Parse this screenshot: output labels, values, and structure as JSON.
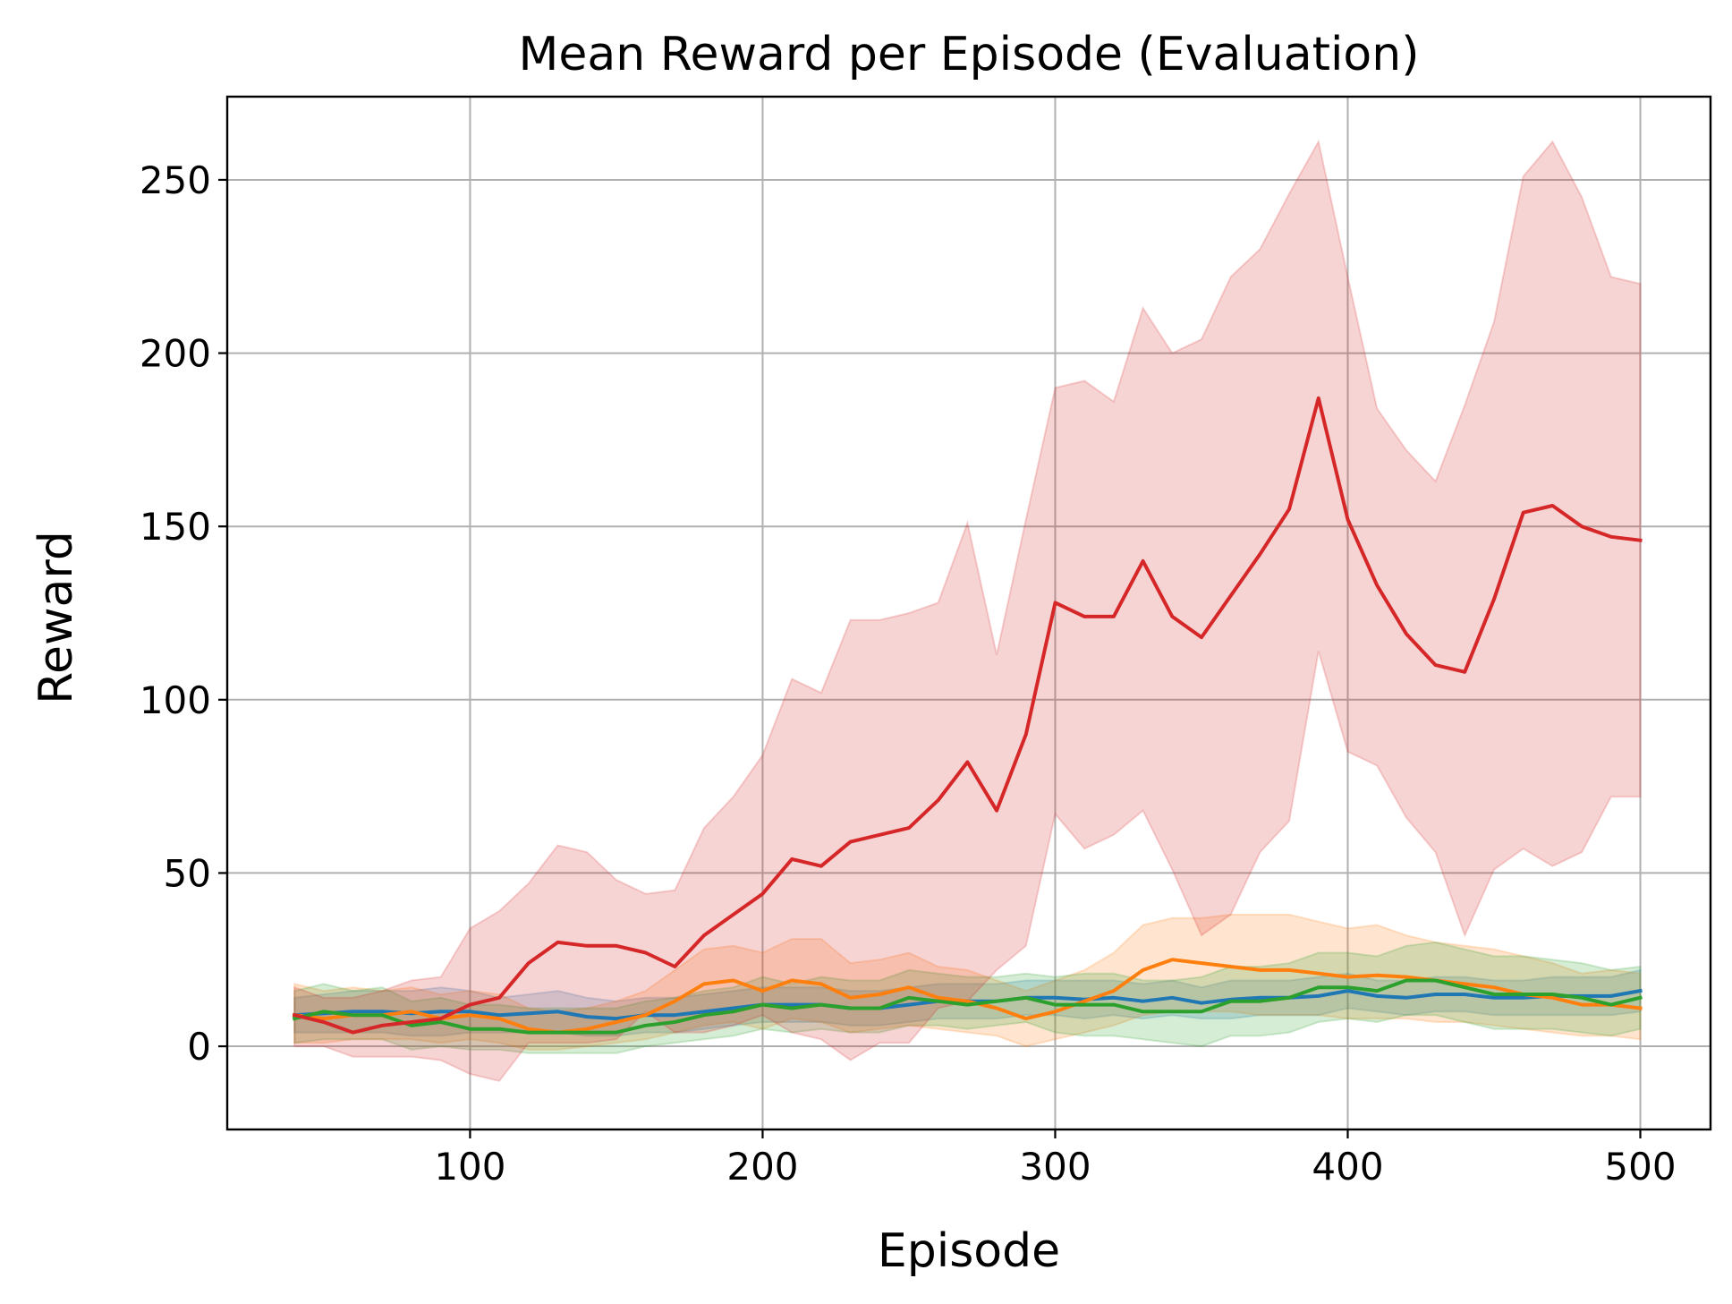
{
  "chart_data": {
    "type": "line",
    "title": "Mean Reward per Episode (Evaluation)",
    "xlabel": "Episode",
    "ylabel": "Reward",
    "xlim": [
      17,
      524
    ],
    "ylim": [
      -24,
      274
    ],
    "xticks": [
      100,
      200,
      300,
      400,
      500
    ],
    "yticks": [
      0,
      50,
      100,
      150,
      200,
      250
    ],
    "grid": true,
    "x": [
      40,
      50,
      60,
      70,
      80,
      90,
      100,
      110,
      120,
      130,
      140,
      150,
      160,
      170,
      180,
      190,
      200,
      210,
      220,
      230,
      240,
      250,
      260,
      270,
      280,
      290,
      300,
      310,
      320,
      330,
      340,
      350,
      360,
      370,
      380,
      390,
      400,
      410,
      420,
      430,
      440,
      450,
      460,
      470,
      480,
      490,
      500
    ],
    "series": [
      {
        "color": "#1f77b4",
        "values": [
          9,
          9.5,
          10,
          10,
          9.5,
          10,
          10,
          9,
          9.5,
          10,
          8.5,
          8,
          9,
          9,
          10,
          11,
          12,
          12,
          12,
          11,
          11,
          12,
          13,
          13,
          13,
          14,
          14,
          13.5,
          14,
          13,
          14,
          12.5,
          13.5,
          14,
          14,
          14.5,
          16,
          14.5,
          14,
          15,
          15,
          14,
          14,
          14.5,
          14.5,
          14.5,
          16
        ],
        "lower": [
          4,
          4,
          4,
          4,
          3,
          3,
          4,
          4,
          4,
          4,
          3,
          3,
          4,
          4,
          5,
          6,
          7,
          7,
          7,
          6,
          6,
          7,
          8,
          8,
          8,
          9,
          9,
          8,
          9,
          8,
          9,
          8,
          8,
          9,
          9,
          9,
          11,
          10,
          9,
          10,
          10,
          9,
          9,
          9,
          9,
          9,
          10
        ],
        "upper": [
          14,
          15,
          16,
          16,
          16,
          17,
          16,
          14,
          15,
          16,
          14,
          13,
          14,
          14,
          15,
          16,
          17,
          17,
          17,
          16,
          16,
          17,
          18,
          18,
          18,
          19,
          19,
          19,
          19,
          18,
          19,
          17,
          19,
          19,
          19,
          20,
          21,
          19,
          19,
          20,
          20,
          19,
          19,
          20,
          20,
          20,
          22
        ]
      },
      {
        "color": "#ff7f0e",
        "values": [
          9,
          8,
          9,
          9,
          10,
          8,
          9,
          8,
          5,
          4,
          5,
          7,
          9,
          13,
          18,
          19,
          16,
          19,
          18,
          14,
          15,
          17,
          14,
          13,
          11,
          8,
          10,
          13,
          16,
          22,
          25,
          24,
          23,
          22,
          22,
          21,
          20,
          20.5,
          20,
          19,
          18,
          17,
          15,
          14,
          12,
          12,
          11
        ],
        "lower": [
          1,
          1,
          2,
          2,
          2,
          1,
          2,
          1,
          -1,
          -1,
          0,
          1,
          2,
          4,
          6,
          7,
          5,
          8,
          7,
          4,
          5,
          6,
          5,
          4,
          3,
          0,
          2,
          4,
          6,
          9,
          10,
          10,
          10,
          9,
          9,
          9,
          8,
          8,
          8,
          7,
          7,
          6,
          5,
          4,
          3,
          3,
          2
        ],
        "upper": [
          18,
          16,
          17,
          16,
          17,
          15,
          16,
          15,
          11,
          10,
          11,
          13,
          16,
          22,
          28,
          29,
          27,
          31,
          31,
          24,
          25,
          27,
          23,
          22,
          19,
          16,
          19,
          22,
          27,
          35,
          37,
          37,
          38,
          38,
          38,
          36,
          34,
          35,
          32,
          30,
          29,
          28,
          26,
          24,
          21,
          22,
          21
        ]
      },
      {
        "color": "#2ca02c",
        "values": [
          8,
          10,
          9,
          9,
          6,
          7,
          5,
          5,
          4,
          4,
          4,
          4,
          6,
          7,
          9,
          10,
          12,
          11,
          12,
          11,
          11,
          14,
          13,
          12,
          13,
          14,
          12,
          12,
          12,
          10,
          10,
          10,
          13,
          13,
          14,
          17,
          17,
          16,
          19,
          19,
          17,
          15,
          15,
          15,
          14,
          12,
          14
        ],
        "lower": [
          1,
          2,
          2,
          2,
          -1,
          0,
          -1,
          -1,
          -2,
          -2,
          -2,
          -2,
          0,
          1,
          2,
          3,
          5,
          4,
          5,
          4,
          4,
          6,
          6,
          5,
          6,
          7,
          4,
          3,
          3,
          2,
          1,
          0,
          3,
          3,
          4,
          7,
          8,
          7,
          9,
          9,
          7,
          5,
          5,
          5,
          4,
          3,
          5
        ],
        "upper": [
          16,
          18,
          16,
          17,
          13,
          14,
          12,
          12,
          11,
          11,
          11,
          11,
          13,
          14,
          16,
          17,
          20,
          18,
          20,
          19,
          19,
          22,
          21,
          20,
          20,
          21,
          20,
          21,
          21,
          19,
          19,
          20,
          23,
          23,
          24,
          27,
          27,
          26,
          29,
          30,
          28,
          26,
          26,
          25,
          24,
          22,
          23
        ]
      },
      {
        "color": "#d62728",
        "values": [
          9,
          7,
          4,
          6,
          7,
          8,
          12,
          14,
          24,
          30,
          29,
          29,
          27,
          23,
          32,
          38,
          44,
          54,
          52,
          59,
          61,
          63,
          71,
          82,
          68,
          90,
          128,
          124,
          124,
          140,
          124,
          118,
          130,
          142,
          155,
          187,
          152,
          133,
          119,
          110,
          108,
          129,
          154,
          156,
          150,
          147,
          146
        ],
        "lower": [
          0,
          0,
          -3,
          -3,
          -3,
          -4,
          -8,
          -10,
          1,
          1,
          1,
          2,
          10,
          4,
          4,
          6,
          9,
          4,
          2,
          -4,
          1,
          1,
          11,
          13,
          22,
          29,
          67,
          57,
          61,
          68,
          51,
          32,
          38,
          56,
          65,
          114,
          85,
          81,
          66,
          56,
          32,
          51,
          57,
          52,
          56,
          72,
          72
        ],
        "upper": [
          17,
          14,
          14,
          16,
          19,
          20,
          34,
          39,
          47,
          58,
          56,
          48,
          44,
          45,
          63,
          72,
          84,
          106,
          102,
          123,
          123,
          125,
          128,
          151,
          113,
          152,
          190,
          192,
          186,
          213,
          200,
          204,
          222,
          230,
          246,
          261,
          222,
          184,
          172,
          163,
          185,
          209,
          251,
          261,
          245,
          222,
          220
        ]
      }
    ]
  }
}
